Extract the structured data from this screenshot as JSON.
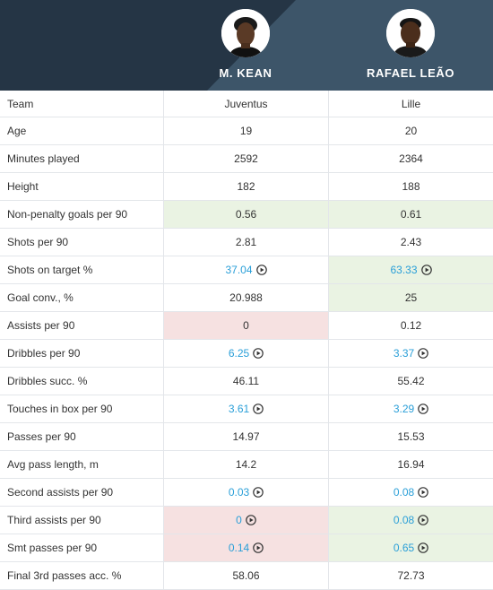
{
  "players": [
    {
      "name": "M. KEAN",
      "avatar_icon": "player-photo-icon"
    },
    {
      "name": "RAFAEL LEÃO",
      "avatar_icon": "player-photo-icon"
    }
  ],
  "colors": {
    "header_bg": "#253545",
    "better": "#eaf3e3",
    "worse": "#f6e1e1",
    "link": "#2a9fd8"
  },
  "rows": [
    {
      "label": "Team",
      "v1": "Juventus",
      "v2": "Lille"
    },
    {
      "label": "Age",
      "v1": "19",
      "v2": "20"
    },
    {
      "label": "Minutes played",
      "v1": "2592",
      "v2": "2364"
    },
    {
      "label": "Height",
      "v1": "182",
      "v2": "188"
    },
    {
      "label": "Non-penalty goals per 90",
      "v1": "0.56",
      "v2": "0.61"
    },
    {
      "label": "Shots per 90",
      "v1": "2.81",
      "v2": "2.43"
    },
    {
      "label": "Shots on target %",
      "v1": "37.04",
      "v2": "63.33"
    },
    {
      "label": "Goal conv., %",
      "v1": "20.988",
      "v2": "25"
    },
    {
      "label": "Assists per 90",
      "v1": "0",
      "v2": "0.12"
    },
    {
      "label": "Dribbles per 90",
      "v1": "6.25",
      "v2": "3.37"
    },
    {
      "label": "Dribbles succ. %",
      "v1": "46.11",
      "v2": "55.42"
    },
    {
      "label": "Touches in box per 90",
      "v1": "3.61",
      "v2": "3.29"
    },
    {
      "label": "Passes per 90",
      "v1": "14.97",
      "v2": "15.53"
    },
    {
      "label": "Avg pass length, m",
      "v1": "14.2",
      "v2": "16.94"
    },
    {
      "label": "Second assists per 90",
      "v1": "0.03",
      "v2": "0.08"
    },
    {
      "label": "Third assists per 90",
      "v1": "0",
      "v2": "0.08"
    },
    {
      "label": "Smt passes per 90",
      "v1": "0.14",
      "v2": "0.65"
    },
    {
      "label": "Final 3rd passes acc. %",
      "v1": "58.06",
      "v2": "72.73"
    }
  ]
}
